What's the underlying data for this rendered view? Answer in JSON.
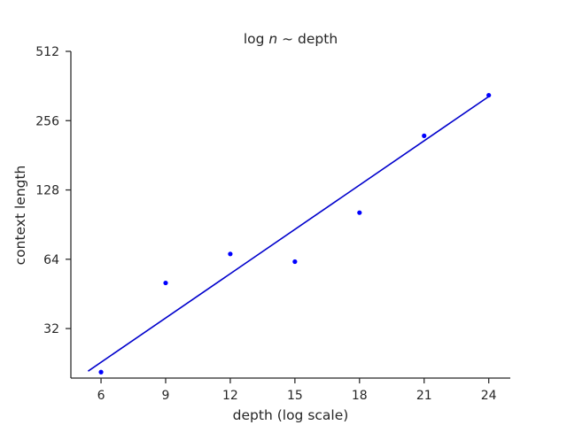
{
  "chart_data": {
    "type": "scatter",
    "title": "log n ~ depth",
    "title_parts": {
      "log": "log ",
      "n": "n",
      "sep": " ~ depth"
    },
    "xlabel": "depth (log scale)",
    "ylabel": "context length",
    "x_ticks": [
      6,
      9,
      12,
      15,
      18,
      21,
      24
    ],
    "x_tick_labels": [
      "6",
      "9",
      "12",
      "15",
      "18",
      "21",
      "24"
    ],
    "xlim": [
      4.6,
      25.0
    ],
    "y_scale": "log2",
    "y_ticks": [
      32,
      64,
      128,
      256,
      512
    ],
    "y_tick_labels": [
      "32",
      "64",
      "128",
      "256",
      "512"
    ],
    "ylim": [
      19.5,
      512
    ],
    "series": [
      {
        "kind": "points",
        "x": [
          6,
          9,
          12,
          15,
          18,
          21,
          24
        ],
        "y": [
          20.7,
          50.5,
          67.5,
          62.5,
          102,
          220,
          330
        ],
        "color": "#0000ff"
      },
      {
        "kind": "fit-line",
        "x": [
          5.4,
          24.0
        ],
        "y": [
          20.9,
          326
        ],
        "color": "#0000cc"
      }
    ],
    "grid": false,
    "legend": "none"
  }
}
